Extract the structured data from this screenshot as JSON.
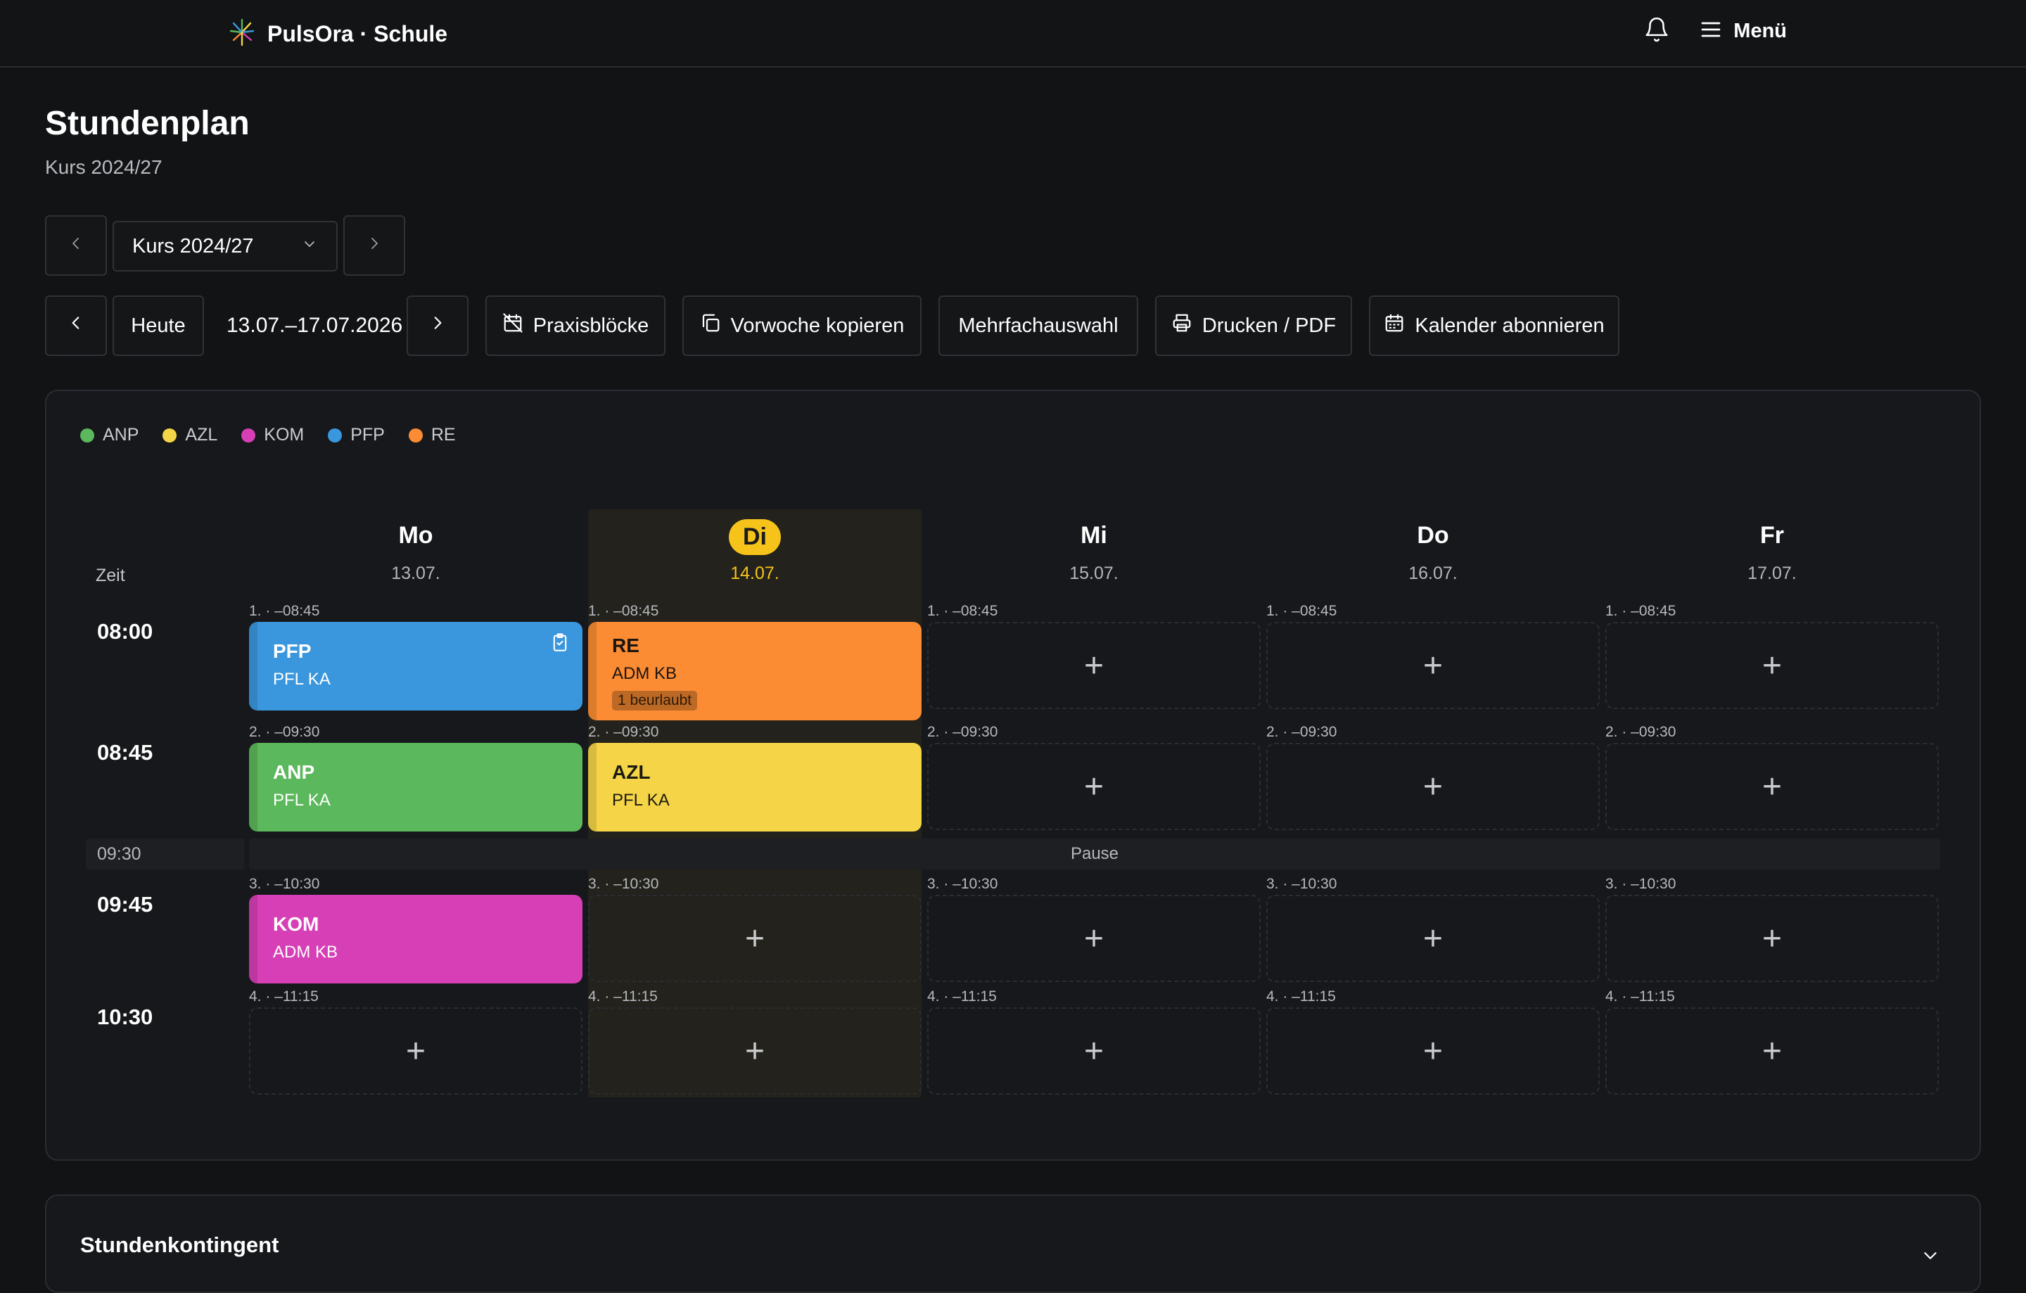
{
  "app": {
    "name": "PulsOra · Schule",
    "menu_label": "Menü"
  },
  "page": {
    "title": "Stundenplan",
    "subtitle": "Kurs 2024/27"
  },
  "course_selector": {
    "value": "Kurs 2024/27"
  },
  "week_nav": {
    "today_label": "Heute",
    "range": "13.07.–17.07.2026"
  },
  "toolbar": {
    "praxis": "Praxisblöcke",
    "copy_week": "Vorwoche kopieren",
    "multi": "Mehrfachauswahl",
    "print": "Drucken / PDF",
    "subscribe": "Kalender abonnieren"
  },
  "legend": [
    {
      "label": "ANP",
      "color": "#5cb85c"
    },
    {
      "label": "AZL",
      "color": "#f5d547"
    },
    {
      "label": "KOM",
      "color": "#d63fb5"
    },
    {
      "label": "PFP",
      "color": "#3a97dd"
    },
    {
      "label": "RE",
      "color": "#fb8c33"
    }
  ],
  "grid": {
    "zeit_label": "Zeit",
    "days": [
      {
        "name": "Mo",
        "date": "13.07."
      },
      {
        "name": "Di",
        "date": "14.07.",
        "today": true
      },
      {
        "name": "Mi",
        "date": "15.07."
      },
      {
        "name": "Do",
        "date": "16.07."
      },
      {
        "name": "Fr",
        "date": "17.07."
      }
    ],
    "periods": [
      {
        "time": "08:00",
        "slot": "1. · –08:45"
      },
      {
        "time": "08:45",
        "slot": "2. · –09:30"
      },
      {
        "time": "09:45",
        "slot": "3. · –10:30"
      },
      {
        "time": "10:30",
        "slot": "4. · –11:15"
      }
    ],
    "break": {
      "time": "09:30",
      "label": "Pause"
    },
    "add_symbol": "+"
  },
  "lessons": {
    "mo1": {
      "subject": "PFP",
      "meta": "PFL  KA",
      "color": "#3a97dd"
    },
    "di1": {
      "subject": "RE",
      "meta": "ADM  KB",
      "badge": "1 beurlaubt",
      "color": "#fb8c33"
    },
    "mo2": {
      "subject": "ANP",
      "meta": "PFL  KA",
      "color": "#5cb85c"
    },
    "di2": {
      "subject": "AZL",
      "meta": "PFL  KA",
      "color": "#f5d547"
    },
    "mo3": {
      "subject": "KOM",
      "meta": "ADM  KB",
      "color": "#d63fb5"
    }
  },
  "kontingent": {
    "title": "Stundenkontingent"
  }
}
